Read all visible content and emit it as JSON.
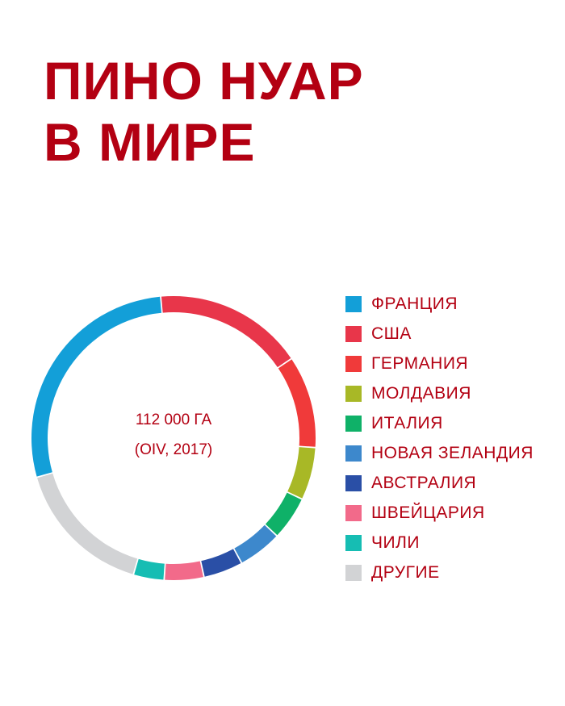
{
  "title_lines": [
    "ПИНО НУАР",
    "В МИРЕ"
  ],
  "center": {
    "line1": "112 000 ГА",
    "line2": "(OIV, 2017)"
  },
  "chart_data": {
    "type": "pie",
    "style": "donut",
    "total": "112 000 ГА",
    "legend_position": "right",
    "slices": [
      {
        "label": "ФРАНЦИЯ",
        "value": 28.0,
        "color": "#139fd8"
      },
      {
        "label": "США",
        "value": 17.0,
        "color": "#e8364a"
      },
      {
        "label": "ГЕРМАНИЯ",
        "value": 10.5,
        "color": "#f03a3a"
      },
      {
        "label": "МОЛДАВИЯ",
        "value": 6.0,
        "color": "#a8b826"
      },
      {
        "label": "ИТАЛИЯ",
        "value": 5.0,
        "color": "#0fb168"
      },
      {
        "label": "НОВАЯ ЗЕЛАНДИЯ",
        "value": 5.0,
        "color": "#3d88cc"
      },
      {
        "label": "АВСТРАЛИЯ",
        "value": 4.5,
        "color": "#2a4fa6"
      },
      {
        "label": "ШВЕЙЦАРИЯ",
        "value": 4.5,
        "color": "#f26a8a"
      },
      {
        "label": "ЧИЛИ",
        "value": 3.5,
        "color": "#16bdb3"
      },
      {
        "label": "ДРУГИЕ",
        "value": 16.0,
        "color": "#d2d3d5"
      }
    ]
  }
}
